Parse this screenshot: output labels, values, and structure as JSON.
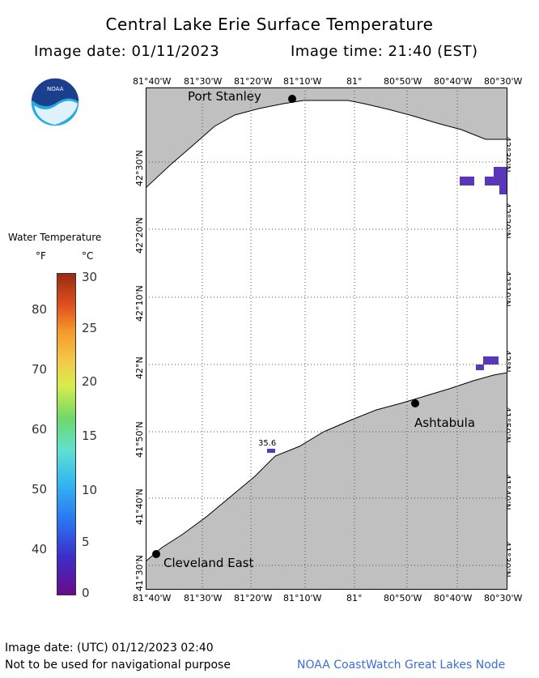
{
  "header": {
    "title": "Central Lake Erie Surface Temperature",
    "image_date": "Image date: 01/11/2023",
    "image_time": "Image time: 21:40 (EST)"
  },
  "logo": {
    "text": "NOAA"
  },
  "top_ticks": [
    "81°40'W",
    "81°30'W",
    "81°20'W",
    "81°10'W",
    "81°",
    "80°50'W",
    "80°40'W",
    "80°30'W"
  ],
  "bottom_ticks": [
    "81°40'W",
    "81°30'W",
    "81°20'W",
    "81°10'W",
    "81°",
    "80°50'W",
    "80°40'W",
    "80°30'W"
  ],
  "lat_ticks": [
    "42°30'N",
    "42°20'N",
    "42°10'N",
    "42°N",
    "41°50'N",
    "41°40'N",
    "41°30'N"
  ],
  "places": {
    "port_stanley": "Port Stanley",
    "ashtabula": "Ashtabula",
    "cleveland_east": "Cleveland East"
  },
  "annotation": "35.6",
  "legend": {
    "title": "Water Temperature",
    "unit_f": "°F",
    "unit_c": "°C",
    "f_ticks": [
      "80",
      "70",
      "60",
      "50",
      "40"
    ],
    "c_ticks": [
      "30",
      "25",
      "20",
      "15",
      "10",
      "5",
      "0"
    ]
  },
  "footer": {
    "utc_date": "Image date: (UTC) 01/12/2023  02:40",
    "disclaimer": "Not to be used for navigational purpose",
    "credit": "NOAA CoastWatch Great Lakes Node"
  },
  "colors": {
    "land": "#c0c0c0",
    "water": "#ffffff",
    "cold_pixels": "#5a37b8",
    "grid": "#555555"
  }
}
